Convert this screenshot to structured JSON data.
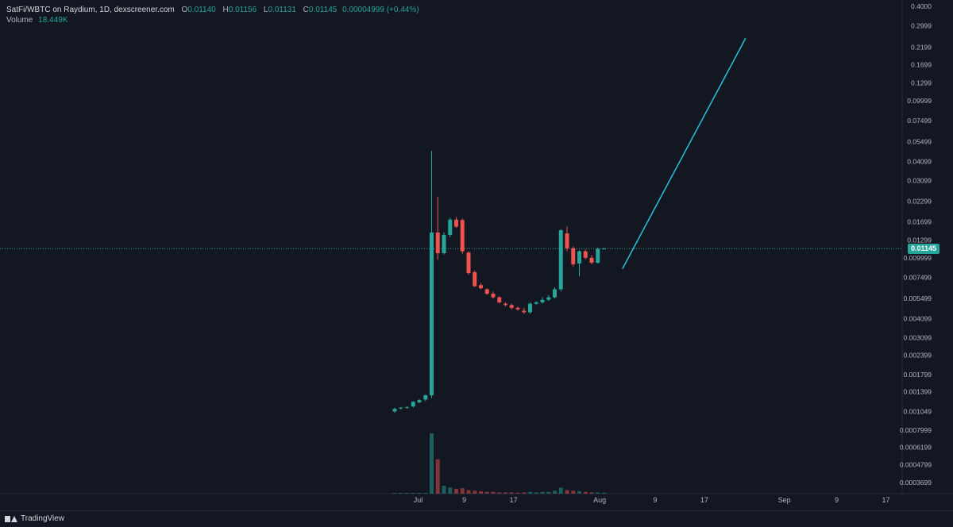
{
  "legend": {
    "title": "SatFi/WBTC on Raydium, 1D, dexscreener.com",
    "o_label": "O",
    "o": "0.01140",
    "h_label": "H",
    "h": "0.01156",
    "l_label": "L",
    "l": "0.01131",
    "c_label": "C",
    "c": "0.01145",
    "change": "0.00004999 (+0.44%)",
    "volume_label": "Volume",
    "volume": "18.449K"
  },
  "last_price": "0.01145",
  "brand": "TradingView",
  "colors": {
    "background": "#131722",
    "up": "#26a69a",
    "down": "#ef5350",
    "trendline": "#22c5e0",
    "grid": "#2a2e39"
  },
  "chart_data": {
    "type": "candlestick",
    "y_scale": "log",
    "y_ticks": [
      "0.4000",
      "0.2999",
      "0.2199",
      "0.1699",
      "0.1299",
      "0.09999",
      "0.07499",
      "0.05499",
      "0.04099",
      "0.03099",
      "0.02299",
      "0.01699",
      "0.01299",
      "0.009999",
      "0.007499",
      "0.005499",
      "0.004099",
      "0.003099",
      "0.002399",
      "0.001799",
      "0.001399",
      "0.001049",
      "0.0007999",
      "0.0006199",
      "0.0004799",
      "0.0003699"
    ],
    "x_ticks": [
      "Jul",
      "9",
      "17",
      "Aug",
      "9",
      "17",
      "Sep",
      "9",
      "17"
    ],
    "candles": [
      {
        "o": 0.00105,
        "h": 0.00111,
        "l": 0.00103,
        "c": 0.00109
      },
      {
        "o": 0.0011,
        "h": 0.00112,
        "l": 0.00108,
        "c": 0.00111
      },
      {
        "o": 0.00111,
        "h": 0.00113,
        "l": 0.00109,
        "c": 0.00112
      },
      {
        "o": 0.00113,
        "h": 0.00122,
        "l": 0.00111,
        "c": 0.00121
      },
      {
        "o": 0.0012,
        "h": 0.00126,
        "l": 0.00118,
        "c": 0.00124
      },
      {
        "o": 0.00125,
        "h": 0.00135,
        "l": 0.00122,
        "c": 0.00133
      },
      {
        "o": 0.00133,
        "h": 0.048,
        "l": 0.00128,
        "c": 0.0145
      },
      {
        "o": 0.0145,
        "h": 0.0245,
        "l": 0.0097,
        "c": 0.0107
      },
      {
        "o": 0.0107,
        "h": 0.0145,
        "l": 0.0105,
        "c": 0.014
      },
      {
        "o": 0.014,
        "h": 0.018,
        "l": 0.0135,
        "c": 0.0175
      },
      {
        "o": 0.0175,
        "h": 0.0182,
        "l": 0.0155,
        "c": 0.0158
      },
      {
        "o": 0.0174,
        "h": 0.0178,
        "l": 0.0106,
        "c": 0.011
      },
      {
        "o": 0.0108,
        "h": 0.011,
        "l": 0.0078,
        "c": 0.008
      },
      {
        "o": 0.0081,
        "h": 0.0083,
        "l": 0.0065,
        "c": 0.0066
      },
      {
        "o": 0.0067,
        "h": 0.0069,
        "l": 0.0063,
        "c": 0.0064
      },
      {
        "o": 0.0063,
        "h": 0.0064,
        "l": 0.0058,
        "c": 0.0059
      },
      {
        "o": 0.0059,
        "h": 0.0061,
        "l": 0.0055,
        "c": 0.0056
      },
      {
        "o": 0.0056,
        "h": 0.0057,
        "l": 0.0051,
        "c": 0.0052
      },
      {
        "o": 0.0051,
        "h": 0.0052,
        "l": 0.0049,
        "c": 0.005
      },
      {
        "o": 0.005,
        "h": 0.0051,
        "l": 0.0047,
        "c": 0.0048
      },
      {
        "o": 0.0048,
        "h": 0.0049,
        "l": 0.0046,
        "c": 0.0047
      },
      {
        "o": 0.0046,
        "h": 0.0048,
        "l": 0.0044,
        "c": 0.0045
      },
      {
        "o": 0.0045,
        "h": 0.0052,
        "l": 0.0044,
        "c": 0.0051
      },
      {
        "o": 0.0051,
        "h": 0.0053,
        "l": 0.005,
        "c": 0.0052
      },
      {
        "o": 0.0052,
        "h": 0.0056,
        "l": 0.0051,
        "c": 0.0054
      },
      {
        "o": 0.0054,
        "h": 0.0058,
        "l": 0.0053,
        "c": 0.0056
      },
      {
        "o": 0.0056,
        "h": 0.0065,
        "l": 0.0055,
        "c": 0.0063
      },
      {
        "o": 0.0063,
        "h": 0.0152,
        "l": 0.0061,
        "c": 0.015
      },
      {
        "o": 0.0143,
        "h": 0.0158,
        "l": 0.011,
        "c": 0.0115
      },
      {
        "o": 0.0115,
        "h": 0.0118,
        "l": 0.0088,
        "c": 0.0091
      },
      {
        "o": 0.0092,
        "h": 0.0112,
        "l": 0.0076,
        "c": 0.011
      },
      {
        "o": 0.011,
        "h": 0.0113,
        "l": 0.0098,
        "c": 0.01
      },
      {
        "o": 0.01,
        "h": 0.0104,
        "l": 0.0091,
        "c": 0.0093
      },
      {
        "o": 0.0093,
        "h": 0.0116,
        "l": 0.0092,
        "c": 0.0114
      },
      {
        "o": 0.0114,
        "h": 0.01156,
        "l": 0.01131,
        "c": 0.01145
      }
    ],
    "volume": [
      0.3,
      0.4,
      0.3,
      0.6,
      0.4,
      0.8,
      100,
      57,
      13,
      10,
      8,
      9,
      6,
      5,
      4,
      3,
      3,
      2,
      2,
      2,
      1.5,
      2,
      3,
      2,
      3,
      3,
      5,
      10,
      6,
      5,
      4,
      3,
      2,
      2,
      0.5
    ],
    "trendline": {
      "from_bar": 37,
      "from_price": 0.0085,
      "to_bar": 57,
      "to_price": 0.25
    }
  }
}
